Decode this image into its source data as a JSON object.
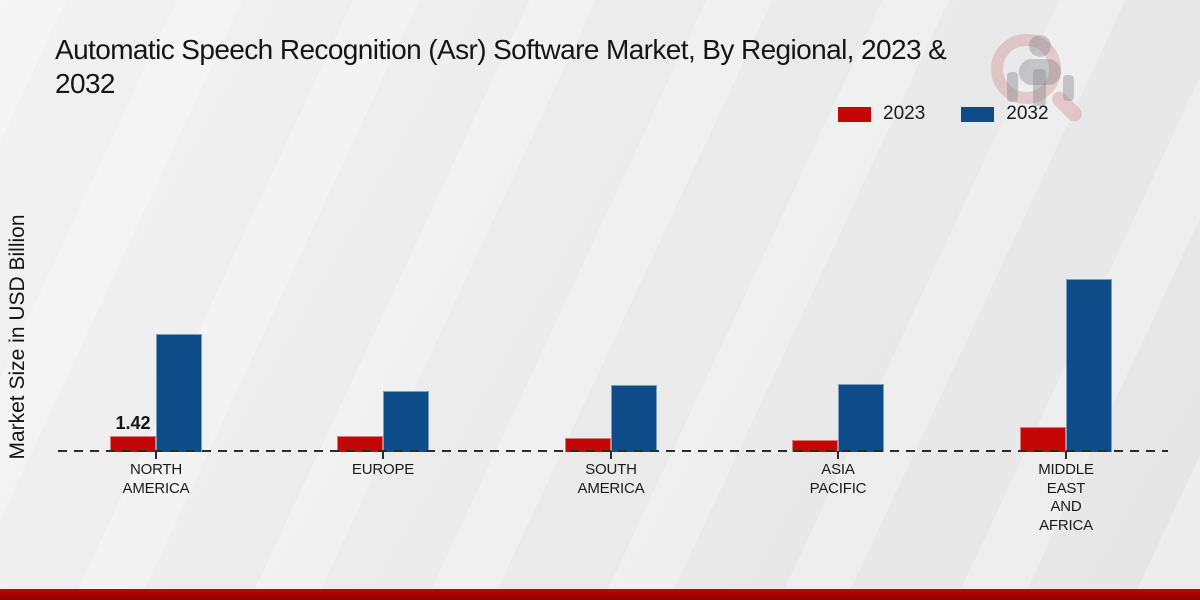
{
  "header": {
    "title_line1": "Automatic Speech Recognition (Asr) Software Market, By Regional, 2023 &",
    "title_line2": "2032"
  },
  "legend": {
    "items": [
      {
        "label": "2023",
        "color": "#c40606"
      },
      {
        "label": "2032",
        "color": "#0d4c89"
      }
    ]
  },
  "y_axis": {
    "title": "Market Size in USD Billion"
  },
  "watermark": {
    "name": "market-research-future-logo",
    "ring_color": "#ba4646",
    "figure_color": "#828288"
  },
  "footer": {
    "banner_color": "#b00505"
  },
  "chart_data": {
    "type": "bar",
    "title": "Automatic Speech Recognition (Asr) Software Market, By Regional, 2023 & 2032",
    "xlabel": "",
    "ylabel": "Market Size in USD Billion",
    "units": "USD Billion",
    "categories": [
      "NORTH AMERICA",
      "EUROPE",
      "SOUTH AMERICA",
      "ASIA PACIFIC",
      "MIDDLE EAST AND AFRICA"
    ],
    "category_label_lines": [
      [
        "NORTH",
        "AMERICA"
      ],
      [
        "EUROPE"
      ],
      [
        "SOUTH",
        "AMERICA"
      ],
      [
        "ASIA",
        "PACIFIC"
      ],
      [
        "MIDDLE",
        "EAST",
        "AND",
        "AFRICA"
      ]
    ],
    "series": [
      {
        "name": "2023",
        "color": "#c40606",
        "values": [
          1.42,
          1.45,
          1.2,
          1.05,
          2.2
        ]
      },
      {
        "name": "2032",
        "color": "#0d4c89",
        "values": [
          10.4,
          5.4,
          5.9,
          6.0,
          15.3
        ]
      }
    ],
    "data_labels": [
      {
        "series": "2023",
        "category": "NORTH AMERICA",
        "text": "1.42"
      }
    ],
    "ylim": [
      0,
      16
    ],
    "grid": false,
    "baseline_style": "dashed",
    "legend_position": "top-right"
  }
}
